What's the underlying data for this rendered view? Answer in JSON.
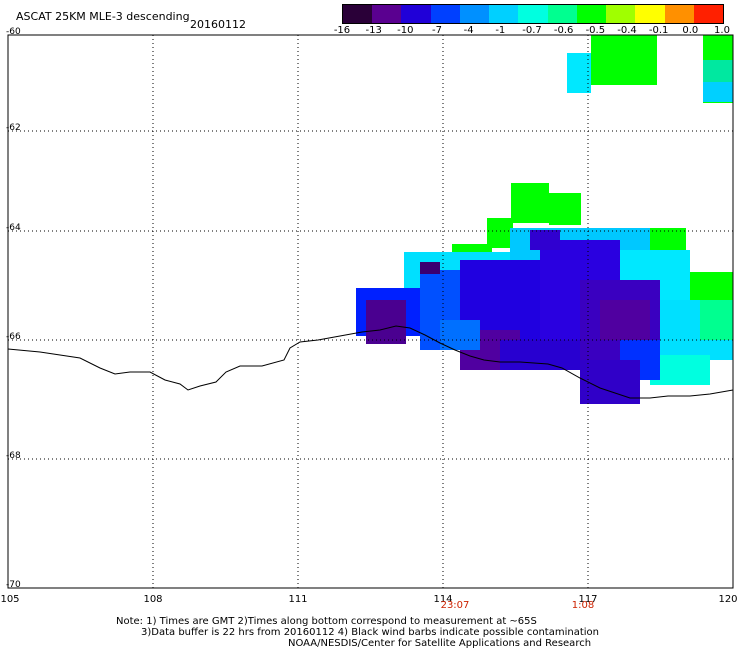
{
  "header": {
    "title": "ASCAT 25KM MLE-3 descending",
    "date": "20160112"
  },
  "colorbar": {
    "labels": [
      "-16",
      "-13",
      "-10",
      "-7",
      "-4",
      "-1",
      "-0.7",
      "-0.6",
      "-0.5",
      "-0.4",
      "-0.1",
      "0.0",
      "1.0"
    ],
    "colors": [
      "#2a0038",
      "#5a0090",
      "#2000d8",
      "#0040ff",
      "#0090ff",
      "#00d0ff",
      "#00ffe0",
      "#00ff90",
      "#00ff00",
      "#a0ff00",
      "#ffff00",
      "#ff9000",
      "#ff2000"
    ]
  },
  "axes": {
    "y_labels": [
      "-60",
      "-62",
      "-64",
      "-66",
      "-68",
      "-70"
    ],
    "x_labels": [
      "105",
      "108",
      "111",
      "114",
      "117",
      "120"
    ]
  },
  "times": [
    "23:07",
    "1:08"
  ],
  "notes": {
    "line1": "Note: 1) Times are GMT 2)Times along bottom correspond to measurement at ~65S",
    "line2": "3)Data buffer is 22 hrs from 20160112 4) Black wind barbs indicate possible contamination",
    "line3": "NOAA/NESDIS/Center for Satellite Applications and Research"
  },
  "legend_colors": {
    "green": "#00ff00",
    "cyan": "#00ffff",
    "blue": "#0000ff",
    "purple": "#4b0082"
  }
}
